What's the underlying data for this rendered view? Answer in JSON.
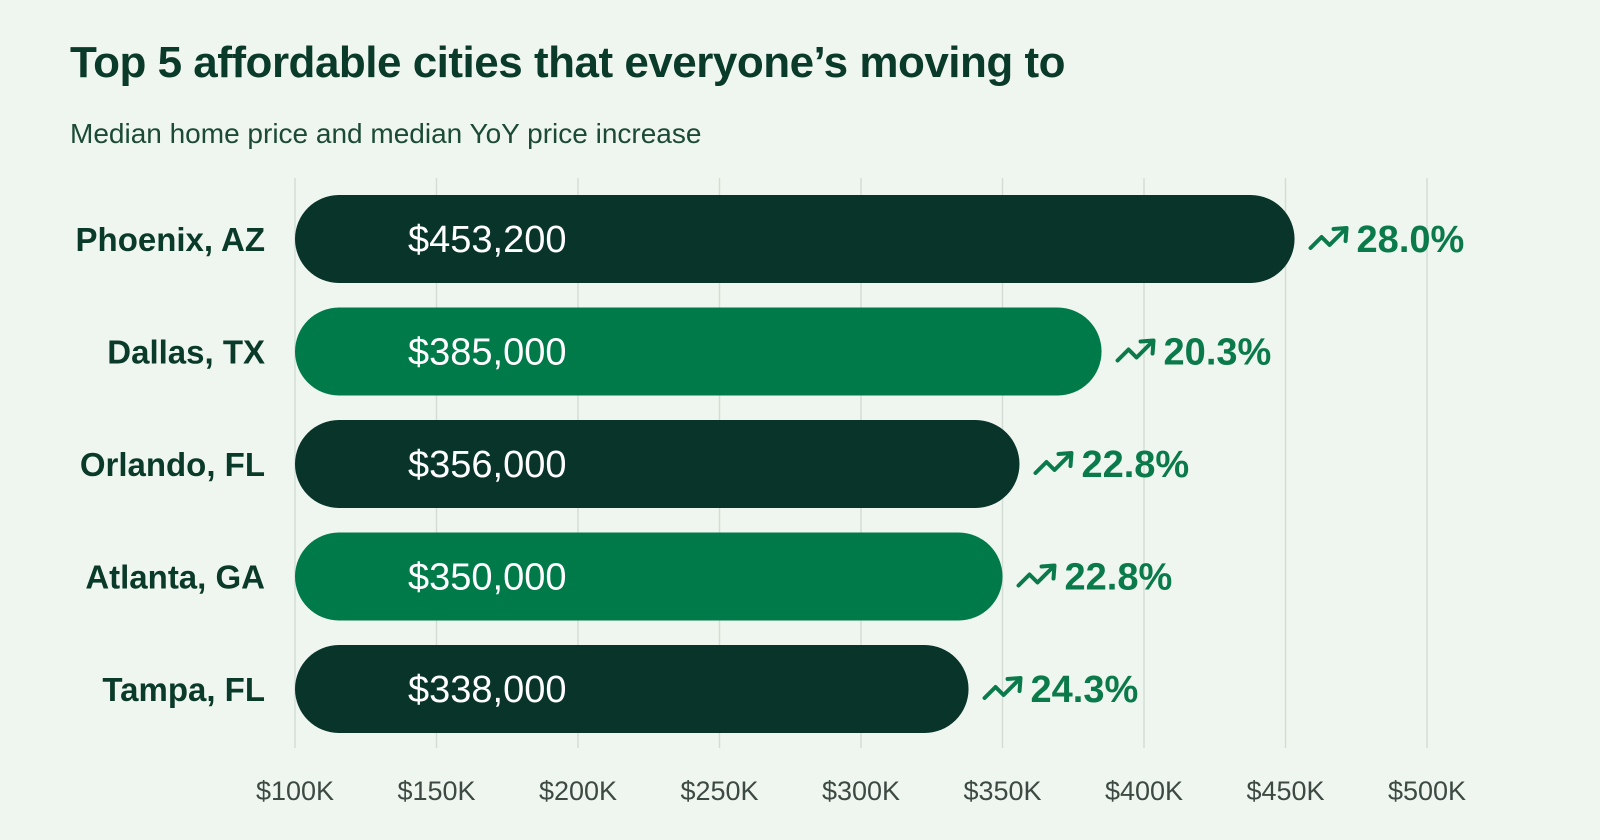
{
  "colors": {
    "background": "#eef6ef",
    "bar_dark": "#08342a",
    "bar_green": "#017a4a",
    "pct_text": "#0b7a4a",
    "city_text": "#0a3a2a",
    "axis_text": "#3d4a44",
    "grid": "#d3ddd5"
  },
  "chart_data": {
    "type": "bar",
    "orientation": "horizontal",
    "title": "Top 5 affordable cities that everyone’s moving to",
    "subtitle": "Median home price and median YoY price increase",
    "categories": [
      "Phoenix, AZ",
      "Dallas, TX",
      "Orlando, FL",
      "Atlanta, GA",
      "Tampa, FL"
    ],
    "values": [
      453200,
      385000,
      356000,
      350000,
      338000
    ],
    "value_labels": [
      "$453,200",
      "$385,000",
      "$356,000",
      "$350,000",
      "$338,000"
    ],
    "yoy_increase_labels": [
      "28.0%",
      "20.3%",
      "22.8%",
      "22.8%",
      "24.3%"
    ],
    "bar_color_keys": [
      "bar_dark",
      "bar_green",
      "bar_dark",
      "bar_green",
      "bar_dark"
    ],
    "trend_icon": "trending-up-icon",
    "xlim": [
      100000,
      500000
    ],
    "x_ticks": [
      100000,
      150000,
      200000,
      250000,
      300000,
      350000,
      400000,
      450000,
      500000
    ],
    "x_tick_labels": [
      "$100K",
      "$150K",
      "$200K",
      "$250K",
      "$300K",
      "$350K",
      "$400K",
      "$450K",
      "$500K"
    ],
    "grid": true,
    "legend": "none"
  }
}
